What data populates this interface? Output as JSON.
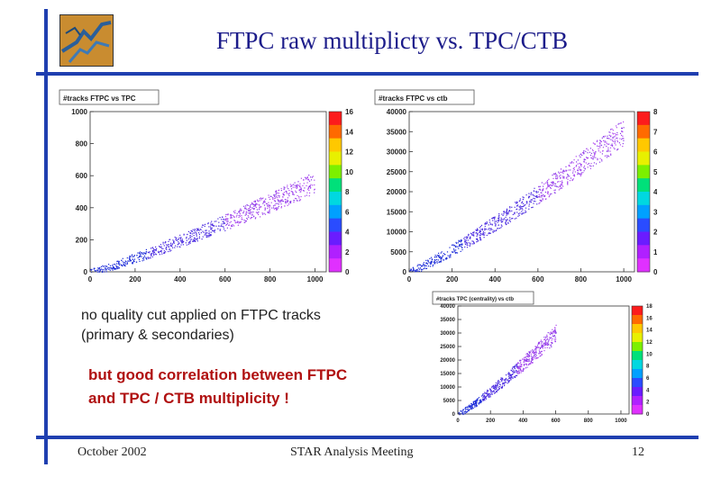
{
  "slide": {
    "title": "FTPC raw multiplicty vs. TPC/CTB",
    "note_lines": [
      "no quality cut applied on FTPC tracks",
      "(primary & secondaries)"
    ],
    "highlight_lines": [
      "but good correlation between FTPC",
      "and TPC / CTB  multiplicity !"
    ],
    "footer": {
      "date": "October 2002",
      "meeting": "STAR Analysis Meeting",
      "page": "12"
    }
  },
  "chart_data": [
    {
      "type": "scatter",
      "title": "#tracks FTPC vs TPC",
      "x_ticks": [
        "0",
        "200",
        "400",
        "600",
        "800",
        "1000"
      ],
      "y_ticks": [
        "0",
        "200",
        "400",
        "600",
        "800",
        "1000"
      ],
      "xlim": [
        0,
        1050
      ],
      "ylim": [
        0,
        1000
      ],
      "band": {
        "x": [
          0,
          1000
        ],
        "y": [
          0,
          560
        ]
      },
      "colorbar_ticks": [
        "0",
        "2",
        "4",
        "6",
        "8",
        "10",
        "12",
        "14",
        "16"
      ]
    },
    {
      "type": "scatter",
      "title": "#tracks FTPC vs ctb",
      "x_ticks": [
        "0",
        "200",
        "400",
        "600",
        "800",
        "1000"
      ],
      "y_ticks": [
        "0",
        "5000",
        "10000",
        "15000",
        "20000",
        "25000",
        "30000",
        "35000",
        "40000"
      ],
      "xlim": [
        0,
        1050
      ],
      "ylim": [
        0,
        40000
      ],
      "band": {
        "x": [
          0,
          1000
        ],
        "y": [
          0,
          35000
        ]
      },
      "colorbar_ticks": [
        "0",
        "1",
        "2",
        "3",
        "4",
        "5",
        "6",
        "7",
        "8"
      ]
    },
    {
      "type": "scatter",
      "title": "#tracks TPC (centrality) vs ctb",
      "x_ticks": [
        "0",
        "200",
        "400",
        "600",
        "800",
        "1000"
      ],
      "y_ticks": [
        "0",
        "5000",
        "10000",
        "15000",
        "20000",
        "25000",
        "30000",
        "35000",
        "40000"
      ],
      "xlim": [
        0,
        1050
      ],
      "ylim": [
        0,
        40000
      ],
      "band": {
        "x": [
          0,
          600
        ],
        "y": [
          0,
          30000
        ]
      },
      "colorbar_ticks": [
        "0",
        "2",
        "4",
        "6",
        "8",
        "10",
        "12",
        "14",
        "16",
        "18"
      ]
    }
  ]
}
